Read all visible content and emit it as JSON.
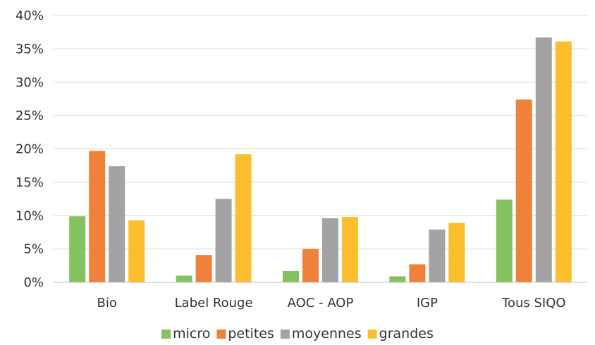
{
  "chart_data": {
    "type": "bar",
    "categories": [
      "Bio",
      "Label Rouge",
      "AOC - AOP",
      "IGP",
      "Tous SIQO"
    ],
    "series": [
      {
        "name": "micro",
        "color": "#84C25F",
        "values": [
          9.9,
          1.0,
          1.7,
          0.9,
          12.4
        ]
      },
      {
        "name": "petites",
        "color": "#F0813A",
        "values": [
          19.7,
          4.1,
          5.0,
          2.7,
          27.4
        ]
      },
      {
        "name": "moyennes",
        "color": "#A3A3A3",
        "values": [
          17.4,
          12.5,
          9.6,
          7.9,
          36.7
        ]
      },
      {
        "name": "grandes",
        "color": "#FDBE2D",
        "values": [
          9.3,
          19.2,
          9.8,
          8.9,
          36.1
        ]
      }
    ],
    "ylim": [
      0,
      40
    ],
    "yticks": [
      0,
      5,
      10,
      15,
      20,
      25,
      30,
      35,
      40
    ],
    "ytick_labels": [
      "0%",
      "5%",
      "10%",
      "15%",
      "20%",
      "25%",
      "30%",
      "35%",
      "40%"
    ],
    "grid": true,
    "legend_position": "bottom"
  }
}
